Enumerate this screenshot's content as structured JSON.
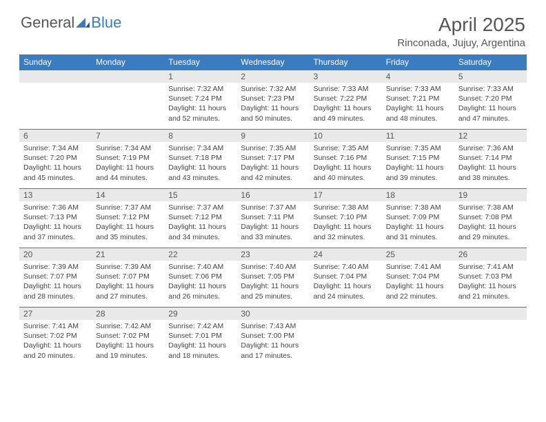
{
  "brand": {
    "general": "General",
    "blue": "Blue"
  },
  "title": "April 2025",
  "location": "Rinconada, Jujuy, Argentina",
  "colors": {
    "header_bg": "#3b7bbf",
    "header_text": "#ffffff",
    "daynum_bg": "#e9e9e9",
    "text": "#444444",
    "row_divider": "#3b7bbf",
    "background": "#ffffff"
  },
  "typography": {
    "title_fontsize": 28,
    "location_fontsize": 15,
    "weekday_fontsize": 12,
    "cell_fontsize": 10.5
  },
  "weekdays": [
    "Sunday",
    "Monday",
    "Tuesday",
    "Wednesday",
    "Thursday",
    "Friday",
    "Saturday"
  ],
  "weeks": [
    [
      null,
      null,
      {
        "n": "1",
        "sunrise": "7:32 AM",
        "sunset": "7:24 PM",
        "dl": "11 hours and 52 minutes."
      },
      {
        "n": "2",
        "sunrise": "7:32 AM",
        "sunset": "7:23 PM",
        "dl": "11 hours and 50 minutes."
      },
      {
        "n": "3",
        "sunrise": "7:33 AM",
        "sunset": "7:22 PM",
        "dl": "11 hours and 49 minutes."
      },
      {
        "n": "4",
        "sunrise": "7:33 AM",
        "sunset": "7:21 PM",
        "dl": "11 hours and 48 minutes."
      },
      {
        "n": "5",
        "sunrise": "7:33 AM",
        "sunset": "7:20 PM",
        "dl": "11 hours and 47 minutes."
      }
    ],
    [
      {
        "n": "6",
        "sunrise": "7:34 AM",
        "sunset": "7:20 PM",
        "dl": "11 hours and 45 minutes."
      },
      {
        "n": "7",
        "sunrise": "7:34 AM",
        "sunset": "7:19 PM",
        "dl": "11 hours and 44 minutes."
      },
      {
        "n": "8",
        "sunrise": "7:34 AM",
        "sunset": "7:18 PM",
        "dl": "11 hours and 43 minutes."
      },
      {
        "n": "9",
        "sunrise": "7:35 AM",
        "sunset": "7:17 PM",
        "dl": "11 hours and 42 minutes."
      },
      {
        "n": "10",
        "sunrise": "7:35 AM",
        "sunset": "7:16 PM",
        "dl": "11 hours and 40 minutes."
      },
      {
        "n": "11",
        "sunrise": "7:35 AM",
        "sunset": "7:15 PM",
        "dl": "11 hours and 39 minutes."
      },
      {
        "n": "12",
        "sunrise": "7:36 AM",
        "sunset": "7:14 PM",
        "dl": "11 hours and 38 minutes."
      }
    ],
    [
      {
        "n": "13",
        "sunrise": "7:36 AM",
        "sunset": "7:13 PM",
        "dl": "11 hours and 37 minutes."
      },
      {
        "n": "14",
        "sunrise": "7:37 AM",
        "sunset": "7:12 PM",
        "dl": "11 hours and 35 minutes."
      },
      {
        "n": "15",
        "sunrise": "7:37 AM",
        "sunset": "7:12 PM",
        "dl": "11 hours and 34 minutes."
      },
      {
        "n": "16",
        "sunrise": "7:37 AM",
        "sunset": "7:11 PM",
        "dl": "11 hours and 33 minutes."
      },
      {
        "n": "17",
        "sunrise": "7:38 AM",
        "sunset": "7:10 PM",
        "dl": "11 hours and 32 minutes."
      },
      {
        "n": "18",
        "sunrise": "7:38 AM",
        "sunset": "7:09 PM",
        "dl": "11 hours and 31 minutes."
      },
      {
        "n": "19",
        "sunrise": "7:38 AM",
        "sunset": "7:08 PM",
        "dl": "11 hours and 29 minutes."
      }
    ],
    [
      {
        "n": "20",
        "sunrise": "7:39 AM",
        "sunset": "7:07 PM",
        "dl": "11 hours and 28 minutes."
      },
      {
        "n": "21",
        "sunrise": "7:39 AM",
        "sunset": "7:07 PM",
        "dl": "11 hours and 27 minutes."
      },
      {
        "n": "22",
        "sunrise": "7:40 AM",
        "sunset": "7:06 PM",
        "dl": "11 hours and 26 minutes."
      },
      {
        "n": "23",
        "sunrise": "7:40 AM",
        "sunset": "7:05 PM",
        "dl": "11 hours and 25 minutes."
      },
      {
        "n": "24",
        "sunrise": "7:40 AM",
        "sunset": "7:04 PM",
        "dl": "11 hours and 24 minutes."
      },
      {
        "n": "25",
        "sunrise": "7:41 AM",
        "sunset": "7:04 PM",
        "dl": "11 hours and 22 minutes."
      },
      {
        "n": "26",
        "sunrise": "7:41 AM",
        "sunset": "7:03 PM",
        "dl": "11 hours and 21 minutes."
      }
    ],
    [
      {
        "n": "27",
        "sunrise": "7:41 AM",
        "sunset": "7:02 PM",
        "dl": "11 hours and 20 minutes."
      },
      {
        "n": "28",
        "sunrise": "7:42 AM",
        "sunset": "7:02 PM",
        "dl": "11 hours and 19 minutes."
      },
      {
        "n": "29",
        "sunrise": "7:42 AM",
        "sunset": "7:01 PM",
        "dl": "11 hours and 18 minutes."
      },
      {
        "n": "30",
        "sunrise": "7:43 AM",
        "sunset": "7:00 PM",
        "dl": "11 hours and 17 minutes."
      },
      null,
      null,
      null
    ]
  ],
  "labels": {
    "sunrise": "Sunrise: ",
    "sunset": "Sunset: ",
    "daylight": "Daylight: "
  }
}
